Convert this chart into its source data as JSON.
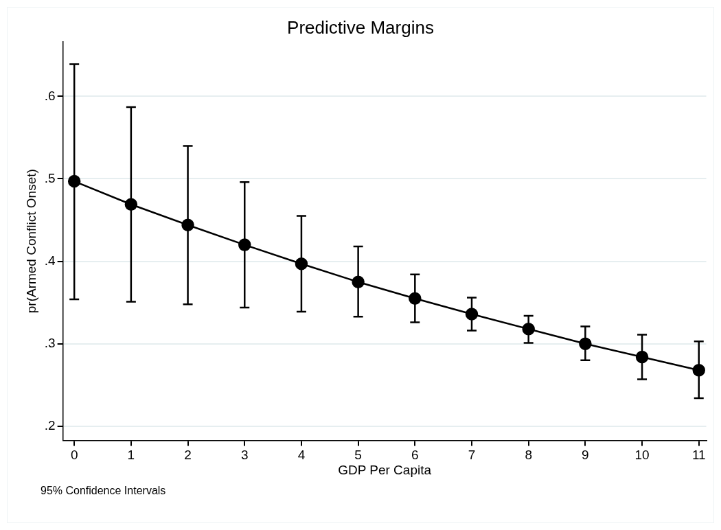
{
  "chart_data": {
    "type": "line",
    "title": "Predictive Margins",
    "xlabel": "GDP Per Capita",
    "ylabel": "pr(Armed Conflict Onset)",
    "x": [
      0,
      1,
      2,
      3,
      4,
      5,
      6,
      7,
      8,
      9,
      10,
      11
    ],
    "series": [
      {
        "color": "#000000",
        "values": [
          0.497,
          0.469,
          0.444,
          0.42,
          0.397,
          0.375,
          0.355,
          0.336,
          0.318,
          0.3,
          0.284,
          0.268
        ],
        "errors": [
          [
            0.354,
            0.639
          ],
          [
            0.351,
            0.587
          ],
          [
            0.348,
            0.54
          ],
          [
            0.344,
            0.496
          ],
          [
            0.339,
            0.455
          ],
          [
            0.333,
            0.418
          ],
          [
            0.326,
            0.384
          ],
          [
            0.316,
            0.356
          ],
          [
            0.301,
            0.334
          ],
          [
            0.28,
            0.321
          ],
          [
            0.257,
            0.311
          ],
          [
            0.234,
            0.303
          ]
        ]
      }
    ],
    "xlim": [
      -0.2,
      11.13
    ],
    "xticks": [
      0,
      1,
      2,
      3,
      4,
      5,
      6,
      7,
      8,
      9,
      10,
      11
    ],
    "ylim": [
      0.183,
      0.666
    ],
    "yticks": [
      {
        "value": 0.2,
        "label": ".2"
      },
      {
        "value": 0.3,
        "label": ".3"
      },
      {
        "value": 0.4,
        "label": ".4"
      },
      {
        "value": 0.5,
        "label": ".5"
      },
      {
        "value": 0.6,
        "label": ".6"
      }
    ],
    "grid": "y",
    "marker": "circle",
    "line_style": "solid",
    "legend": false,
    "annotations": [
      "95% Confidence Intervals"
    ]
  }
}
